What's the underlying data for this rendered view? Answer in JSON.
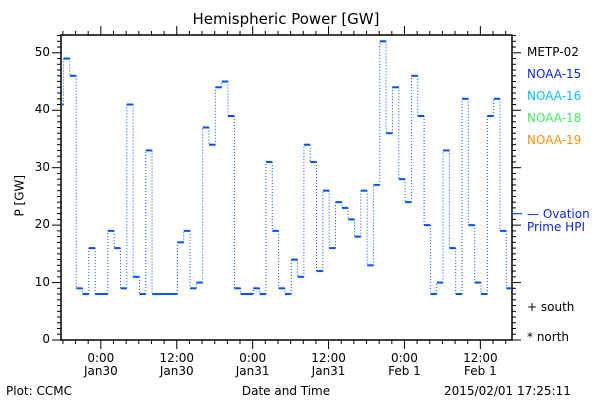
{
  "chart_data": {
    "type": "line",
    "title": "Hemispheric Power [GW]",
    "xlabel": "Date and Time",
    "ylabel": "P [GW]",
    "x_units": "hours since 2015-01-30 00:00 UT",
    "xlim": [
      -6.3,
      65.0
    ],
    "ylim": [
      0,
      53.1
    ],
    "y_ticks": [
      0,
      10,
      20,
      30,
      40,
      50
    ],
    "x_ticks": [
      {
        "hour": 0,
        "time": "0:00",
        "date": "Jan30"
      },
      {
        "hour": 12,
        "time": "12:00",
        "date": "Jan30"
      },
      {
        "hour": 24,
        "time": "0:00",
        "date": "Jan31"
      },
      {
        "hour": 36,
        "time": "12:00",
        "date": "Jan31"
      },
      {
        "hour": 48,
        "time": "0:00",
        "date": "Feb 1"
      },
      {
        "hour": 60,
        "time": "12:00",
        "date": "Feb 1"
      }
    ],
    "x_minor_tick_step_hours": 2,
    "series": [
      {
        "name": "NOAA-15",
        "color": "#0050ff",
        "style": "step",
        "step_hours": 1,
        "x_start": -6.9,
        "values": [
          41,
          49,
          46,
          9,
          8,
          16,
          8,
          8,
          19,
          16,
          9,
          41,
          11,
          8,
          33,
          8,
          8,
          8,
          8,
          17,
          19,
          9,
          10,
          37,
          34,
          44,
          45,
          39,
          9,
          8,
          8,
          9,
          8,
          31,
          19,
          9,
          8,
          14,
          11,
          34,
          31,
          12,
          26,
          16,
          24,
          23,
          21,
          18,
          26,
          13,
          27,
          52,
          36,
          44,
          28,
          24,
          46,
          39,
          20,
          8,
          10,
          33,
          16,
          8,
          42,
          20,
          10,
          8,
          39,
          42,
          19,
          9,
          39
        ]
      }
    ],
    "ovation_prime_hpi": {
      "value": 22,
      "color": "#0050ff"
    },
    "legend": {
      "placement": "right",
      "entries": [
        {
          "label": "METP-02",
          "color": "#000000"
        },
        {
          "label": "NOAA-15",
          "color": "#0a28e6"
        },
        {
          "label": "NOAA-16",
          "color": "#00bfff"
        },
        {
          "label": "NOAA-18",
          "color": "#3cf060"
        },
        {
          "label": "NOAA-19",
          "color": "#ff9010"
        }
      ],
      "ovation_line1": "— Ovation",
      "ovation_line2": "Prime HPI",
      "south": "+ south",
      "north": "* north"
    },
    "footer_left": "Plot: CCMC",
    "footer_right": "2015/02/01 17:25:11"
  }
}
